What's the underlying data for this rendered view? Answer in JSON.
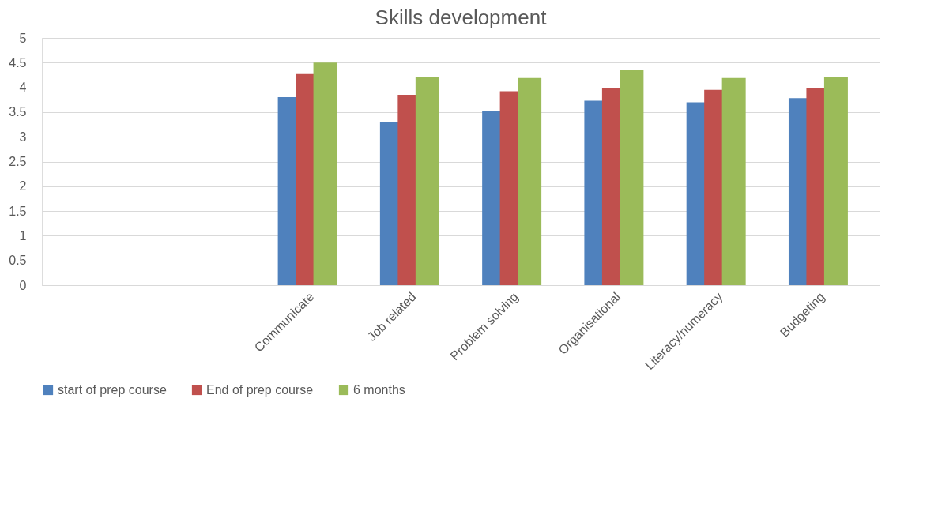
{
  "chart_data": {
    "type": "bar",
    "title": "Skills development",
    "categories": [
      null,
      null,
      "Communicate",
      "Job related",
      "Problem solving",
      "Organisational",
      "Literacy/numeracy",
      "Budgeting"
    ],
    "series": [
      {
        "name": "start of prep course",
        "color": "#4f81bd",
        "values": [
          null,
          null,
          3.8,
          3.29,
          3.53,
          3.73,
          3.7,
          3.78
        ]
      },
      {
        "name": "End of prep course",
        "color": "#c0504d",
        "values": [
          null,
          null,
          4.27,
          3.85,
          3.92,
          3.99,
          3.95,
          3.99
        ]
      },
      {
        "name": "6 months",
        "color": "#9bbb59",
        "values": [
          null,
          null,
          4.5,
          4.2,
          4.19,
          4.35,
          4.19,
          4.21
        ]
      }
    ],
    "ylim": [
      0,
      5
    ],
    "yticks": [
      0,
      0.5,
      1,
      1.5,
      2,
      2.5,
      3,
      3.5,
      4,
      4.5,
      5
    ],
    "grid": "y",
    "legend": "bottom"
  }
}
